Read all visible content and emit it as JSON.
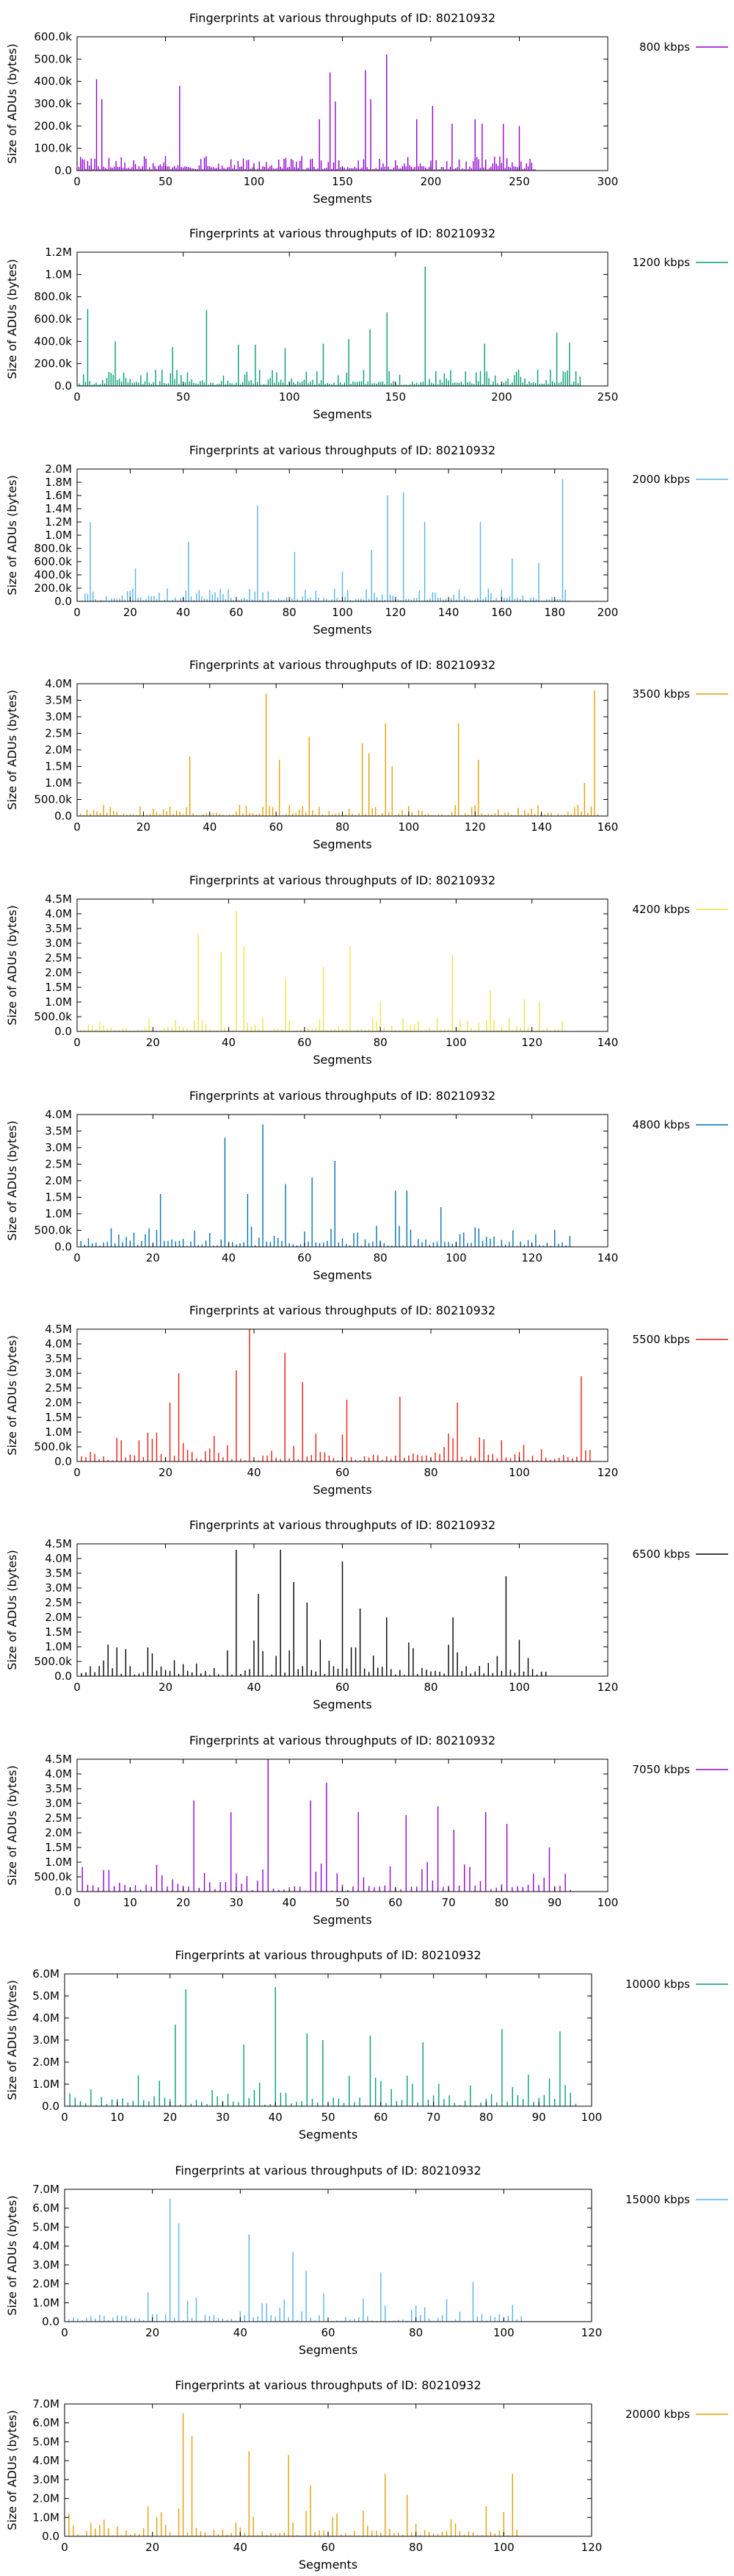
{
  "chart_data": [
    {
      "type": "bar",
      "title": "Fingerprints at various throughputs of ID: 80210932",
      "xlabel": "Segments",
      "ylabel": "Size of ADUs (bytes)",
      "legend": "800 kbps",
      "color": "#9400d3",
      "xlim": [
        0,
        300
      ],
      "ylim": [
        0,
        600000
      ],
      "xticks": [
        "0",
        "50",
        "100",
        "150",
        "200",
        "250",
        "300"
      ],
      "yticks": [
        "0.0",
        "100.0k",
        "200.0k",
        "300.0k",
        "400.0k",
        "500.0k",
        "600.0k"
      ],
      "n_segments": 259,
      "peaks": [
        [
          11,
          410000
        ],
        [
          14,
          320000
        ],
        [
          58,
          380000
        ],
        [
          137,
          230000
        ],
        [
          143,
          440000
        ],
        [
          146,
          310000
        ],
        [
          163,
          450000
        ],
        [
          166,
          320000
        ],
        [
          175,
          520000
        ],
        [
          192,
          230000
        ],
        [
          201,
          290000
        ],
        [
          212,
          210000
        ],
        [
          225,
          230000
        ],
        [
          229,
          210000
        ],
        [
          241,
          210000
        ],
        [
          250,
          200000
        ]
      ],
      "base": [
        5000,
        65000
      ]
    },
    {
      "type": "bar",
      "title": "Fingerprints at various throughputs of ID: 80210932",
      "xlabel": "Segments",
      "ylabel": "Size of ADUs (bytes)",
      "legend": "1200 kbps",
      "color": "#009e73",
      "xlim": [
        0,
        250
      ],
      "ylim": [
        0,
        1200000
      ],
      "xticks": [
        "0",
        "50",
        "100",
        "150",
        "200",
        "250"
      ],
      "yticks": [
        "0.0",
        "200.0k",
        "400.0k",
        "600.0k",
        "800.0k",
        "1.0M",
        "1.2M"
      ],
      "n_segments": 237,
      "peaks": [
        [
          5,
          690000
        ],
        [
          18,
          400000
        ],
        [
          45,
          350000
        ],
        [
          61,
          680000
        ],
        [
          76,
          370000
        ],
        [
          84,
          370000
        ],
        [
          98,
          340000
        ],
        [
          116,
          380000
        ],
        [
          128,
          420000
        ],
        [
          138,
          510000
        ],
        [
          146,
          660000
        ],
        [
          164,
          1070000
        ],
        [
          192,
          380000
        ],
        [
          226,
          480000
        ],
        [
          232,
          390000
        ]
      ],
      "base": [
        10000,
        150000
      ]
    },
    {
      "type": "bar",
      "title": "Fingerprints at various throughputs of ID: 80210932",
      "xlabel": "Segments",
      "ylabel": "Size of ADUs (bytes)",
      "legend": "2000 kbps",
      "color": "#56b4e9",
      "xlim": [
        0,
        200
      ],
      "ylim": [
        0,
        2000000
      ],
      "xticks": [
        "0",
        "20",
        "40",
        "60",
        "80",
        "100",
        "120",
        "140",
        "160",
        "180",
        "200"
      ],
      "yticks": [
        "0.0",
        "200.0k",
        "400.0k",
        "600.0k",
        "800.0k",
        "1.0M",
        "1.2M",
        "1.4M",
        "1.6M",
        "1.8M",
        "2.0M"
      ],
      "n_segments": 185,
      "peaks": [
        [
          5,
          1200000
        ],
        [
          22,
          500000
        ],
        [
          42,
          900000
        ],
        [
          68,
          1450000
        ],
        [
          82,
          750000
        ],
        [
          100,
          450000
        ],
        [
          111,
          780000
        ],
        [
          117,
          1600000
        ],
        [
          123,
          1650000
        ],
        [
          131,
          1200000
        ],
        [
          152,
          1200000
        ],
        [
          164,
          650000
        ],
        [
          174,
          580000
        ],
        [
          183,
          1850000
        ]
      ],
      "base": [
        10000,
        200000
      ]
    },
    {
      "type": "bar",
      "title": "Fingerprints at various throughputs of ID: 80210932",
      "xlabel": "Segments",
      "ylabel": "Size of ADUs (bytes)",
      "legend": "3500 kbps",
      "color": "#e69f00",
      "xlim": [
        0,
        160
      ],
      "ylim": [
        0,
        4000000
      ],
      "xticks": [
        "0",
        "20",
        "40",
        "60",
        "80",
        "100",
        "120",
        "140",
        "160"
      ],
      "yticks": [
        "0.0",
        "500.0k",
        "1.0M",
        "1.5M",
        "2.0M",
        "2.5M",
        "3.0M",
        "3.5M",
        "4.0M"
      ],
      "n_segments": 157,
      "peaks": [
        [
          34,
          1800000
        ],
        [
          57,
          3700000
        ],
        [
          61,
          1700000
        ],
        [
          70,
          2400000
        ],
        [
          86,
          2200000
        ],
        [
          88,
          1900000
        ],
        [
          93,
          2800000
        ],
        [
          95,
          1500000
        ],
        [
          115,
          2800000
        ],
        [
          121,
          1700000
        ],
        [
          153,
          1000000
        ],
        [
          156,
          3800000
        ]
      ],
      "base": [
        20000,
        350000
      ]
    },
    {
      "type": "bar",
      "title": "Fingerprints at various throughputs of ID: 80210932",
      "xlabel": "Segments",
      "ylabel": "Size of ADUs (bytes)",
      "legend": "4200 kbps",
      "color": "#f0e442",
      "xlim": [
        0,
        140
      ],
      "ylim": [
        0,
        4500000
      ],
      "xticks": [
        "0",
        "20",
        "40",
        "60",
        "80",
        "100",
        "120",
        "140"
      ],
      "yticks": [
        "0.0",
        "500.0k",
        "1.0M",
        "1.5M",
        "2.0M",
        "2.5M",
        "3.0M",
        "3.5M",
        "4.0M",
        "4.5M"
      ],
      "n_segments": 128,
      "peaks": [
        [
          32,
          3300000
        ],
        [
          38,
          2700000
        ],
        [
          42,
          4100000
        ],
        [
          44,
          2900000
        ],
        [
          55,
          1800000
        ],
        [
          65,
          2200000
        ],
        [
          72,
          2900000
        ],
        [
          80,
          1000000
        ],
        [
          99,
          2600000
        ],
        [
          109,
          1400000
        ],
        [
          118,
          1100000
        ],
        [
          122,
          1000000
        ]
      ],
      "base": [
        20000,
        500000
      ]
    },
    {
      "type": "bar",
      "title": "Fingerprints at various throughputs of ID: 80210932",
      "xlabel": "Segments",
      "ylabel": "Size of ADUs (bytes)",
      "legend": "4800 kbps",
      "color": "#0072b2",
      "xlim": [
        0,
        140
      ],
      "ylim": [
        0,
        4000000
      ],
      "xticks": [
        "0",
        "20",
        "40",
        "60",
        "80",
        "100",
        "120",
        "140"
      ],
      "yticks": [
        "0.0",
        "500.0k",
        "1.0M",
        "1.5M",
        "2.0M",
        "2.5M",
        "3.0M",
        "3.5M",
        "4.0M"
      ],
      "n_segments": 130,
      "peaks": [
        [
          22,
          1600000
        ],
        [
          39,
          3300000
        ],
        [
          45,
          1600000
        ],
        [
          49,
          3700000
        ],
        [
          55,
          1900000
        ],
        [
          62,
          2100000
        ],
        [
          68,
          2600000
        ],
        [
          84,
          1700000
        ],
        [
          87,
          1700000
        ],
        [
          96,
          1200000
        ]
      ],
      "base": [
        30000,
        650000
      ]
    },
    {
      "type": "bar",
      "title": "Fingerprints at various throughputs of ID: 80210932",
      "xlabel": "Segments",
      "ylabel": "Size of ADUs (bytes)",
      "legend": "5500 kbps",
      "color": "#e51e10",
      "xlim": [
        0,
        120
      ],
      "ylim": [
        0,
        4500000
      ],
      "xticks": [
        "0",
        "20",
        "40",
        "60",
        "80",
        "100",
        "120"
      ],
      "yticks": [
        "0.0",
        "500.0k",
        "1.0M",
        "1.5M",
        "2.0M",
        "2.5M",
        "3.0M",
        "3.5M",
        "4.0M",
        "4.5M"
      ],
      "n_segments": 116,
      "peaks": [
        [
          21,
          2000000
        ],
        [
          23,
          3000000
        ],
        [
          36,
          3100000
        ],
        [
          39,
          4500000
        ],
        [
          47,
          3700000
        ],
        [
          51,
          2700000
        ],
        [
          61,
          2100000
        ],
        [
          73,
          2200000
        ],
        [
          86,
          2000000
        ],
        [
          114,
          2900000
        ]
      ],
      "base": [
        30000,
        1000000
      ]
    },
    {
      "type": "bar",
      "title": "Fingerprints at various throughputs of ID: 80210932",
      "xlabel": "Segments",
      "ylabel": "Size of ADUs (bytes)",
      "legend": "6500 kbps",
      "color": "#000000",
      "xlim": [
        0,
        120
      ],
      "ylim": [
        0,
        4500000
      ],
      "xticks": [
        "0",
        "20",
        "40",
        "60",
        "80",
        "100",
        "120"
      ],
      "yticks": [
        "0.0",
        "500.0k",
        "1.0M",
        "1.5M",
        "2.0M",
        "2.5M",
        "3.0M",
        "3.5M",
        "4.0M",
        "4.5M"
      ],
      "n_segments": 106,
      "peaks": [
        [
          36,
          4300000
        ],
        [
          41,
          2800000
        ],
        [
          46,
          4300000
        ],
        [
          49,
          3200000
        ],
        [
          52,
          2500000
        ],
        [
          60,
          3900000
        ],
        [
          64,
          2300000
        ],
        [
          70,
          2000000
        ],
        [
          85,
          2000000
        ],
        [
          97,
          3400000
        ]
      ],
      "base": [
        30000,
        1300000
      ]
    },
    {
      "type": "bar",
      "title": "Fingerprints at various throughputs of ID: 80210932",
      "xlabel": "Segments",
      "ylabel": "Size of ADUs (bytes)",
      "legend": "7050 kbps",
      "color": "#9400d3",
      "xlim": [
        0,
        100
      ],
      "ylim": [
        0,
        4500000
      ],
      "xticks": [
        "0",
        "10",
        "20",
        "30",
        "40",
        "50",
        "60",
        "70",
        "80",
        "90",
        "100"
      ],
      "yticks": [
        "0.0",
        "500.0k",
        "1.0M",
        "1.5M",
        "2.0M",
        "2.5M",
        "3.0M",
        "3.5M",
        "4.0M",
        "4.5M"
      ],
      "n_segments": 93,
      "peaks": [
        [
          22,
          3100000
        ],
        [
          29,
          2700000
        ],
        [
          36,
          4500000
        ],
        [
          44,
          3100000
        ],
        [
          47,
          3700000
        ],
        [
          53,
          2700000
        ],
        [
          62,
          2600000
        ],
        [
          68,
          2900000
        ],
        [
          71,
          2100000
        ],
        [
          77,
          2700000
        ],
        [
          81,
          2300000
        ],
        [
          89,
          1500000
        ]
      ],
      "base": [
        30000,
        1000000
      ]
    },
    {
      "type": "bar",
      "title": "Fingerprints at various throughputs of ID: 80210932",
      "xlabel": "Segments",
      "ylabel": "Size of ADUs (bytes)",
      "legend": "10000 kbps",
      "color": "#009e73",
      "xlim": [
        0,
        100
      ],
      "ylim": [
        0,
        6000000
      ],
      "xticks": [
        "0",
        "10",
        "20",
        "30",
        "40",
        "50",
        "60",
        "70",
        "80",
        "90",
        "100"
      ],
      "yticks": [
        "0.0",
        "1.0M",
        "2.0M",
        "3.0M",
        "4.0M",
        "5.0M",
        "6.0M"
      ],
      "n_segments": 97,
      "peaks": [
        [
          21,
          3700000
        ],
        [
          23,
          5300000
        ],
        [
          34,
          2800000
        ],
        [
          40,
          5400000
        ],
        [
          46,
          3300000
        ],
        [
          49,
          3000000
        ],
        [
          58,
          3200000
        ],
        [
          68,
          2900000
        ],
        [
          83,
          3500000
        ],
        [
          94,
          3400000
        ]
      ],
      "base": [
        30000,
        1500000
      ]
    },
    {
      "type": "bar",
      "title": "Fingerprints at various throughputs of ID: 80210932",
      "xlabel": "Segments",
      "ylabel": "Size of ADUs (bytes)",
      "legend": "15000 kbps",
      "color": "#56b4e9",
      "xlim": [
        0,
        120
      ],
      "ylim": [
        0,
        7000000
      ],
      "xticks": [
        "0",
        "20",
        "40",
        "60",
        "80",
        "100",
        "120"
      ],
      "yticks": [
        "0.0",
        "1.0M",
        "2.0M",
        "3.0M",
        "4.0M",
        "5.0M",
        "6.0M",
        "7.0M"
      ],
      "n_segments": 104,
      "peaks": [
        [
          24,
          6500000
        ],
        [
          26,
          5200000
        ],
        [
          42,
          4600000
        ],
        [
          52,
          3700000
        ],
        [
          55,
          2700000
        ],
        [
          72,
          2600000
        ],
        [
          93,
          2100000
        ]
      ],
      "base": [
        30000,
        1600000
      ]
    },
    {
      "type": "bar",
      "title": "Fingerprints at various throughputs of ID: 80210932",
      "xlabel": "Segments",
      "ylabel": "Size of ADUs (bytes)",
      "legend": "20000 kbps",
      "color": "#e69f00",
      "xlim": [
        0,
        120
      ],
      "ylim": [
        0,
        7000000
      ],
      "xticks": [
        "0",
        "20",
        "40",
        "60",
        "80",
        "100",
        "120"
      ],
      "yticks": [
        "0.0",
        "1.0M",
        "2.0M",
        "3.0M",
        "4.0M",
        "5.0M",
        "6.0M",
        "7.0M"
      ],
      "n_segments": 103,
      "peaks": [
        [
          27,
          6500000
        ],
        [
          29,
          5300000
        ],
        [
          42,
          4500000
        ],
        [
          51,
          4300000
        ],
        [
          56,
          2700000
        ],
        [
          73,
          3300000
        ],
        [
          78,
          2200000
        ],
        [
          102,
          3300000
        ]
      ],
      "base": [
        30000,
        1600000
      ]
    }
  ]
}
